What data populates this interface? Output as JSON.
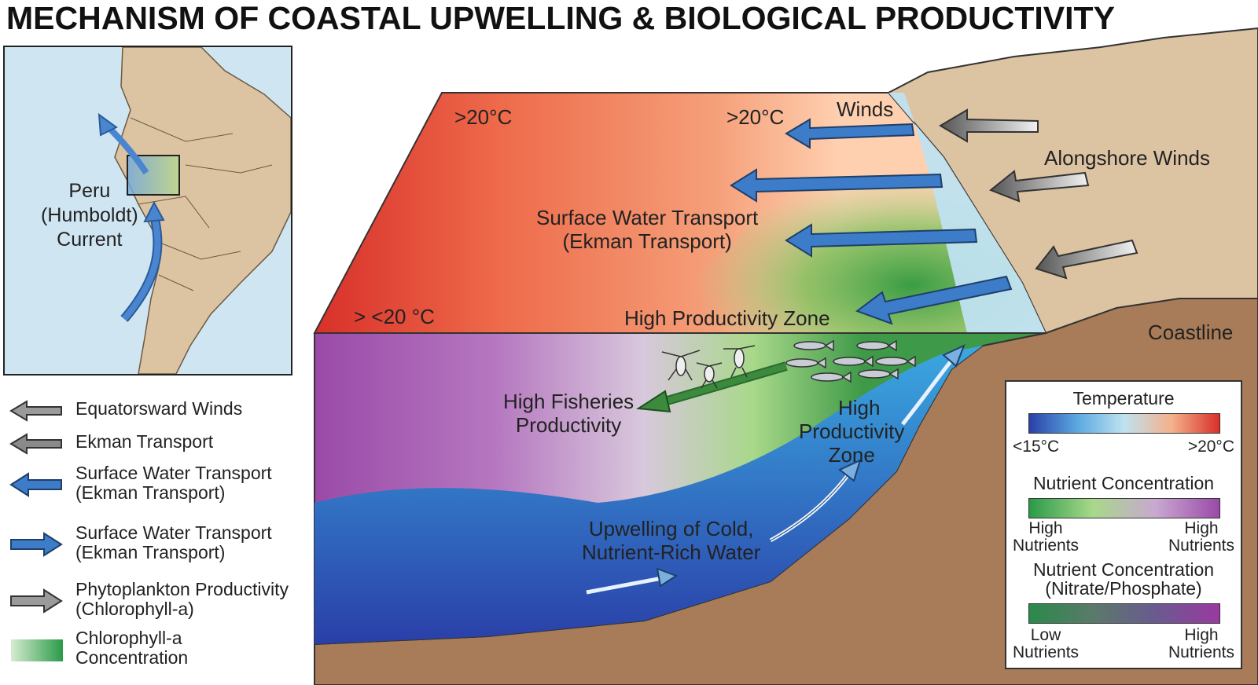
{
  "title": "MECHANISM OF COASTAL UPWELLING & BIOLOGICAL PRODUCTIVITY",
  "inset_map": {
    "current_label": [
      "Peru",
      "(Humboldt)",
      "Current"
    ]
  },
  "legend": [
    {
      "icon": "gray-left-arrow-icon",
      "line1": "Equatorsward Winds",
      "line2": ""
    },
    {
      "icon": "gray-left-arrow-icon",
      "line1": "Ekman Transport",
      "line2": ""
    },
    {
      "icon": "blue-left-arrow-icon",
      "line1": "Surface Water Transport",
      "line2": "(Ekman Transport)"
    },
    {
      "icon": "blue-right-arrow-icon",
      "line1": "Surface Water Transport",
      "line2": "(Ekman Transport)"
    },
    {
      "icon": "gray-right-arrow-icon",
      "line1": "Phytoplankton Productivity",
      "line2": "(Chlorophyll-a)"
    },
    {
      "icon": "green-gradient-swatch-icon",
      "line1": "Chlorophyll-a",
      "line2": "Concentration"
    }
  ],
  "diagram": {
    "temp_top_left": ">20°C",
    "temp_top_mid": ">20°C",
    "temp_left_edge": "> <20 °C",
    "winds": "Winds",
    "alongshore_winds": "Alongshore Winds",
    "surface_transport": [
      "Surface Water Transport",
      "(Ekman Transport)"
    ],
    "high_productivity_zone_surface": "High Productivity Zone",
    "coastline": "Coastline",
    "high_fisheries": [
      "High Fisheries",
      "Productivity"
    ],
    "high_productivity_zone_sub": [
      "High",
      "Productivity",
      "Zone"
    ],
    "upwelling": [
      "Upwelling of Cold,",
      "Nutrient-Rich Water"
    ]
  },
  "key": {
    "temperature": {
      "title": "Temperature",
      "low": "<15°C",
      "high": ">20°C"
    },
    "nutrient1": {
      "title": "Nutrient Concentration",
      "low": [
        "High",
        "Nutrients"
      ],
      "high": [
        "High",
        "Nutrients"
      ]
    },
    "nutrient2": {
      "title": [
        "Nutrient Concentration",
        "(Nitrate/Phosphate)"
      ],
      "low": [
        "Low",
        "Nutrients"
      ],
      "high": [
        "High",
        "Nutrients"
      ]
    }
  },
  "colors": {
    "warm_red": "#d8302a",
    "warm_orange": "#f48a60",
    "productivity_green": "#5fb04a",
    "cold_blue": "#2a58b8",
    "nutrient_purple": "#9a4aa8",
    "land_tan": "#dcc3a2",
    "seabed_brown": "#a87c58",
    "arrow_blue": "#3c7cc8"
  }
}
